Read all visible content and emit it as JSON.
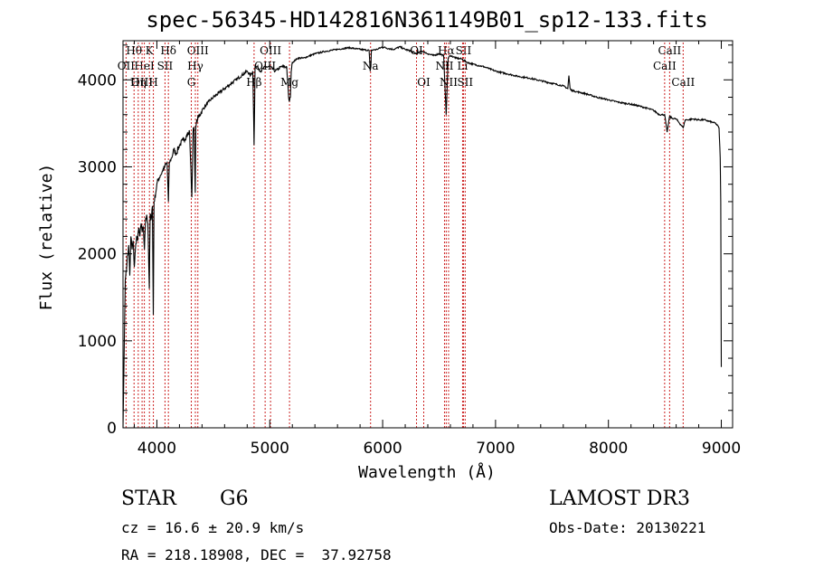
{
  "chart_data": {
    "type": "line",
    "title": "spec-56345-HD142816N361149B01_sp12-133.fits",
    "xlabel": "Wavelength (Å)",
    "ylabel": "Flux (relative)",
    "xlim": [
      3700,
      9100
    ],
    "ylim": [
      0,
      4450
    ],
    "xticks": [
      4000,
      5000,
      6000,
      7000,
      8000,
      9000
    ],
    "yticks": [
      0,
      1000,
      2000,
      3000,
      4000
    ],
    "series": [
      {
        "name": "spectrum",
        "x": [
          3700,
          3720,
          3735,
          3750,
          3760,
          3770,
          3780,
          3790,
          3800,
          3810,
          3820,
          3830,
          3840,
          3850,
          3860,
          3870,
          3880,
          3890,
          3900,
          3910,
          3920,
          3933,
          3940,
          3950,
          3960,
          3968,
          3975,
          3990,
          4000,
          4010,
          4030,
          4050,
          4070,
          4090,
          4102,
          4110,
          4130,
          4150,
          4170,
          4200,
          4230,
          4260,
          4290,
          4310,
          4320,
          4330,
          4340,
          4345,
          4350,
          4360,
          4380,
          4400,
          4430,
          4460,
          4500,
          4550,
          4600,
          4650,
          4700,
          4750,
          4800,
          4830,
          4850,
          4861,
          4870,
          4890,
          4920,
          4960,
          5000,
          5050,
          5100,
          5150,
          5167,
          5173,
          5183,
          5190,
          5200,
          5250,
          5300,
          5400,
          5500,
          5600,
          5700,
          5800,
          5880,
          5890,
          5896,
          5900,
          5950,
          6000,
          6050,
          6100,
          6150,
          6200,
          6250,
          6300,
          6350,
          6400,
          6450,
          6500,
          6540,
          6563,
          6580,
          6600,
          6650,
          6700,
          6750,
          6800,
          6900,
          7000,
          7100,
          7200,
          7300,
          7400,
          7500,
          7600,
          7640,
          7650,
          7660,
          7670,
          7680,
          7700,
          7800,
          7900,
          8000,
          8100,
          8200,
          8300,
          8400,
          8450,
          8498,
          8520,
          8542,
          8560,
          8600,
          8662,
          8680,
          8700,
          8750,
          8800,
          8850,
          8900,
          8950,
          8980,
          8990,
          8995,
          9000
        ],
        "y": [
          0,
          1700,
          1900,
          2100,
          1750,
          2200,
          2050,
          2150,
          1850,
          2050,
          2200,
          2150,
          2300,
          2200,
          2350,
          2250,
          2300,
          2050,
          2400,
          2450,
          2350,
          1600,
          2450,
          2400,
          2550,
          1300,
          2600,
          2700,
          2800,
          2850,
          2900,
          2950,
          3000,
          3050,
          2600,
          3050,
          3100,
          3200,
          3150,
          3250,
          3300,
          3350,
          3400,
          2650,
          3400,
          3450,
          2700,
          3450,
          3500,
          3550,
          3600,
          3650,
          3700,
          3750,
          3800,
          3850,
          3900,
          3950,
          4000,
          4050,
          4100,
          4050,
          4100,
          3250,
          4150,
          4150,
          4100,
          4150,
          4150,
          4100,
          4150,
          4150,
          3800,
          3750,
          3800,
          4100,
          4200,
          4250,
          4250,
          4300,
          4330,
          4350,
          4370,
          4350,
          4340,
          4100,
          4150,
          4340,
          4350,
          4380,
          4360,
          4350,
          4380,
          4350,
          4330,
          4300,
          4330,
          4300,
          4280,
          4300,
          4280,
          3600,
          4250,
          4280,
          4250,
          4240,
          4200,
          4180,
          4150,
          4100,
          4070,
          4040,
          4020,
          3990,
          3960,
          3930,
          3900,
          4050,
          3900,
          3880,
          3880,
          3870,
          3840,
          3800,
          3770,
          3740,
          3720,
          3690,
          3650,
          3600,
          3600,
          3400,
          3580,
          3560,
          3550,
          3450,
          3540,
          3540,
          3550,
          3540,
          3540,
          3520,
          3500,
          3450,
          3100,
          2600,
          700
        ]
      }
    ],
    "line_markers": [
      {
        "label": "Hθ",
        "x": 3798,
        "row": 0
      },
      {
        "label": "K",
        "x": 3934,
        "row": 0
      },
      {
        "label": "Hδ",
        "x": 4102,
        "row": 0
      },
      {
        "label": "OII",
        "x": 3727,
        "row": 1
      },
      {
        "label": "HeI",
        "x": 3889,
        "row": 1
      },
      {
        "label": "SII",
        "x": 4072,
        "row": 1
      },
      {
        "label": "OIII",
        "x": 3869,
        "row": 2
      },
      {
        "label": "Hη",
        "x": 3835,
        "row": 2
      },
      {
        "label": "H",
        "x": 3969,
        "row": 2
      },
      {
        "label": "OIII",
        "x": 4363,
        "row": 0
      },
      {
        "label": "Hγ",
        "x": 4341,
        "row": 1
      },
      {
        "label": "G",
        "x": 4305,
        "row": 2
      },
      {
        "label": "OIII",
        "x": 5007,
        "row": 0
      },
      {
        "label": "OIII",
        "x": 4959,
        "row": 1
      },
      {
        "label": "Hβ",
        "x": 4861,
        "row": 2
      },
      {
        "label": "Mg",
        "x": 5175,
        "row": 2
      },
      {
        "label": "Na",
        "x": 5893,
        "row": 1
      },
      {
        "label": "OI",
        "x": 6300,
        "row": 0
      },
      {
        "label": "Hα",
        "x": 6563,
        "row": 0
      },
      {
        "label": "SII",
        "x": 6716,
        "row": 0
      },
      {
        "label": "NII",
        "x": 6548,
        "row": 1
      },
      {
        "label": "Li",
        "x": 6708,
        "row": 1
      },
      {
        "label": "OI",
        "x": 6364,
        "row": 2
      },
      {
        "label": "NII",
        "x": 6584,
        "row": 2
      },
      {
        "label": "SII",
        "x": 6731,
        "row": 2
      },
      {
        "label": "CaII",
        "x": 8542,
        "row": 0
      },
      {
        "label": "CaII",
        "x": 8498,
        "row": 1
      },
      {
        "label": "CaII",
        "x": 8662,
        "row": 2
      }
    ],
    "grid": false,
    "legend": "none"
  },
  "info": {
    "object_class": "STAR",
    "subclass": "G6",
    "survey": "LAMOST DR3",
    "cz": "cz = 16.6 ± 20.9 km/s",
    "obs_date": "Obs-Date: 20130221",
    "coords": "RA = 218.18908, DEC =  37.92758"
  }
}
